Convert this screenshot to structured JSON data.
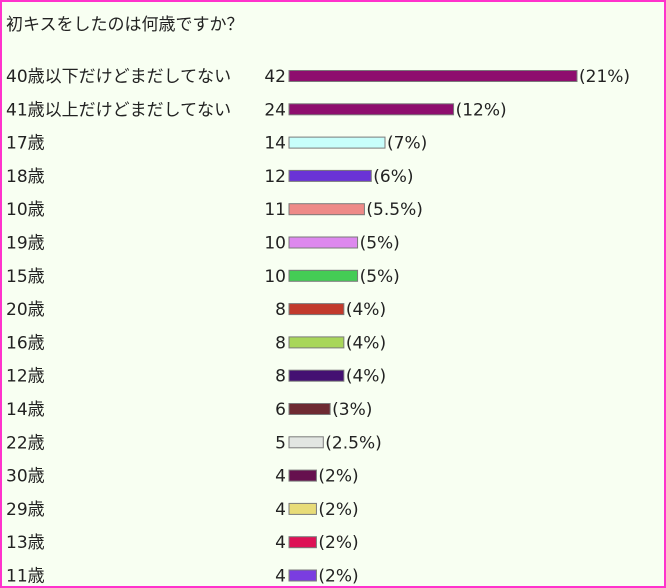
{
  "chart_data": {
    "type": "bar",
    "orientation": "horizontal",
    "title": "初キスをしたのは何歳ですか？",
    "categories": [
      "40歳以下だけどまだしてない",
      "41歳以上だけどまだしてない",
      "17歳",
      "18歳",
      "10歳",
      "19歳",
      "15歳",
      "20歳",
      "16歳",
      "12歳",
      "14歳",
      "22歳",
      "30歳",
      "29歳",
      "13歳",
      "11歳"
    ],
    "values": [
      42,
      24,
      14,
      12,
      11,
      10,
      10,
      8,
      8,
      8,
      6,
      5,
      4,
      4,
      4,
      4
    ],
    "percent_labels": [
      "(21%)",
      "(12%)",
      "(7%)",
      "(6%)",
      "(5.5%)",
      "(5%)",
      "(5%)",
      "(4%)",
      "(4%)",
      "(4%)",
      "(3%)",
      "(2.5%)",
      "(2%)",
      "(2%)",
      "(2%)",
      "(2%)"
    ],
    "colors": [
      "#8e0e6e",
      "#8e0e6e",
      "#c8fffb",
      "#6a33d6",
      "#ee8a88",
      "#dd88ee",
      "#44cc55",
      "#c23a2c",
      "#a8d65a",
      "#441072",
      "#6e2a32",
      "#e2e6e2",
      "#66104e",
      "#e8dc78",
      "#dd1155",
      "#7a3de0"
    ],
    "grid": false,
    "legend": "none"
  }
}
